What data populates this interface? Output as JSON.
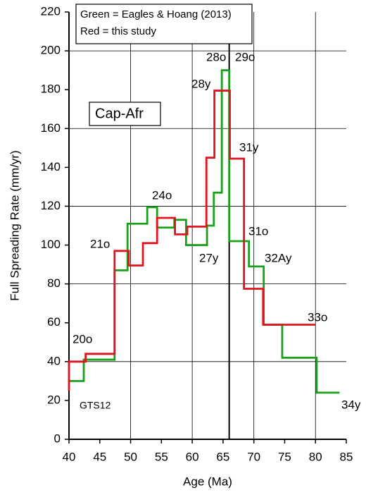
{
  "chart_data": {
    "type": "step",
    "xlabel": "Age (Ma)",
    "ylabel": "Full Spreading Rate (mm/yr)",
    "series": [
      {
        "name": "Green = Eagles & Hoang (2013)",
        "color": "#1aa01a",
        "x": [
          40,
          42.4,
          47.4,
          49.5,
          52.7,
          54.3,
          57.1,
          59.0,
          62.4,
          63.5,
          64.8,
          66.0,
          69.2,
          71.6,
          74.6,
          80.2,
          83.9
        ],
        "values": [
          30,
          41,
          87,
          111,
          119.5,
          109,
          113,
          100,
          110,
          127,
          190,
          102,
          89,
          59,
          42,
          24,
          24
        ]
      },
      {
        "name": "Red = this study",
        "color": "#e0141e",
        "x": [
          40,
          40,
          42.7,
          47.4,
          49.7,
          52.0,
          54.3,
          57.2,
          59.2,
          62.3,
          63.6,
          66.1,
          68.4,
          71.5,
          80
        ],
        "values": [
          25,
          40,
          44,
          97,
          89.5,
          101,
          114,
          105.5,
          109.5,
          145,
          179.5,
          144.5,
          77.5,
          59,
          59
        ]
      }
    ],
    "xlim": [
      40,
      85
    ],
    "xticks": [
      40,
      45,
      50,
      55,
      60,
      65,
      70,
      75,
      80,
      85
    ],
    "ylim": [
      0,
      220
    ],
    "yticks": [
      0,
      20,
      40,
      60,
      80,
      100,
      120,
      140,
      160,
      180,
      200,
      220
    ],
    "xgrid": [
      50,
      60,
      70,
      80
    ],
    "ygrid": [
      40,
      80,
      120,
      160,
      200
    ],
    "boundary": 66,
    "annotations": [
      "20o",
      "21o",
      "24o",
      "27y",
      "28y",
      "28o",
      "29o",
      "31y",
      "31o",
      "32Ay",
      "33o",
      "34y",
      "GTS12",
      "Cap-Afr"
    ]
  }
}
